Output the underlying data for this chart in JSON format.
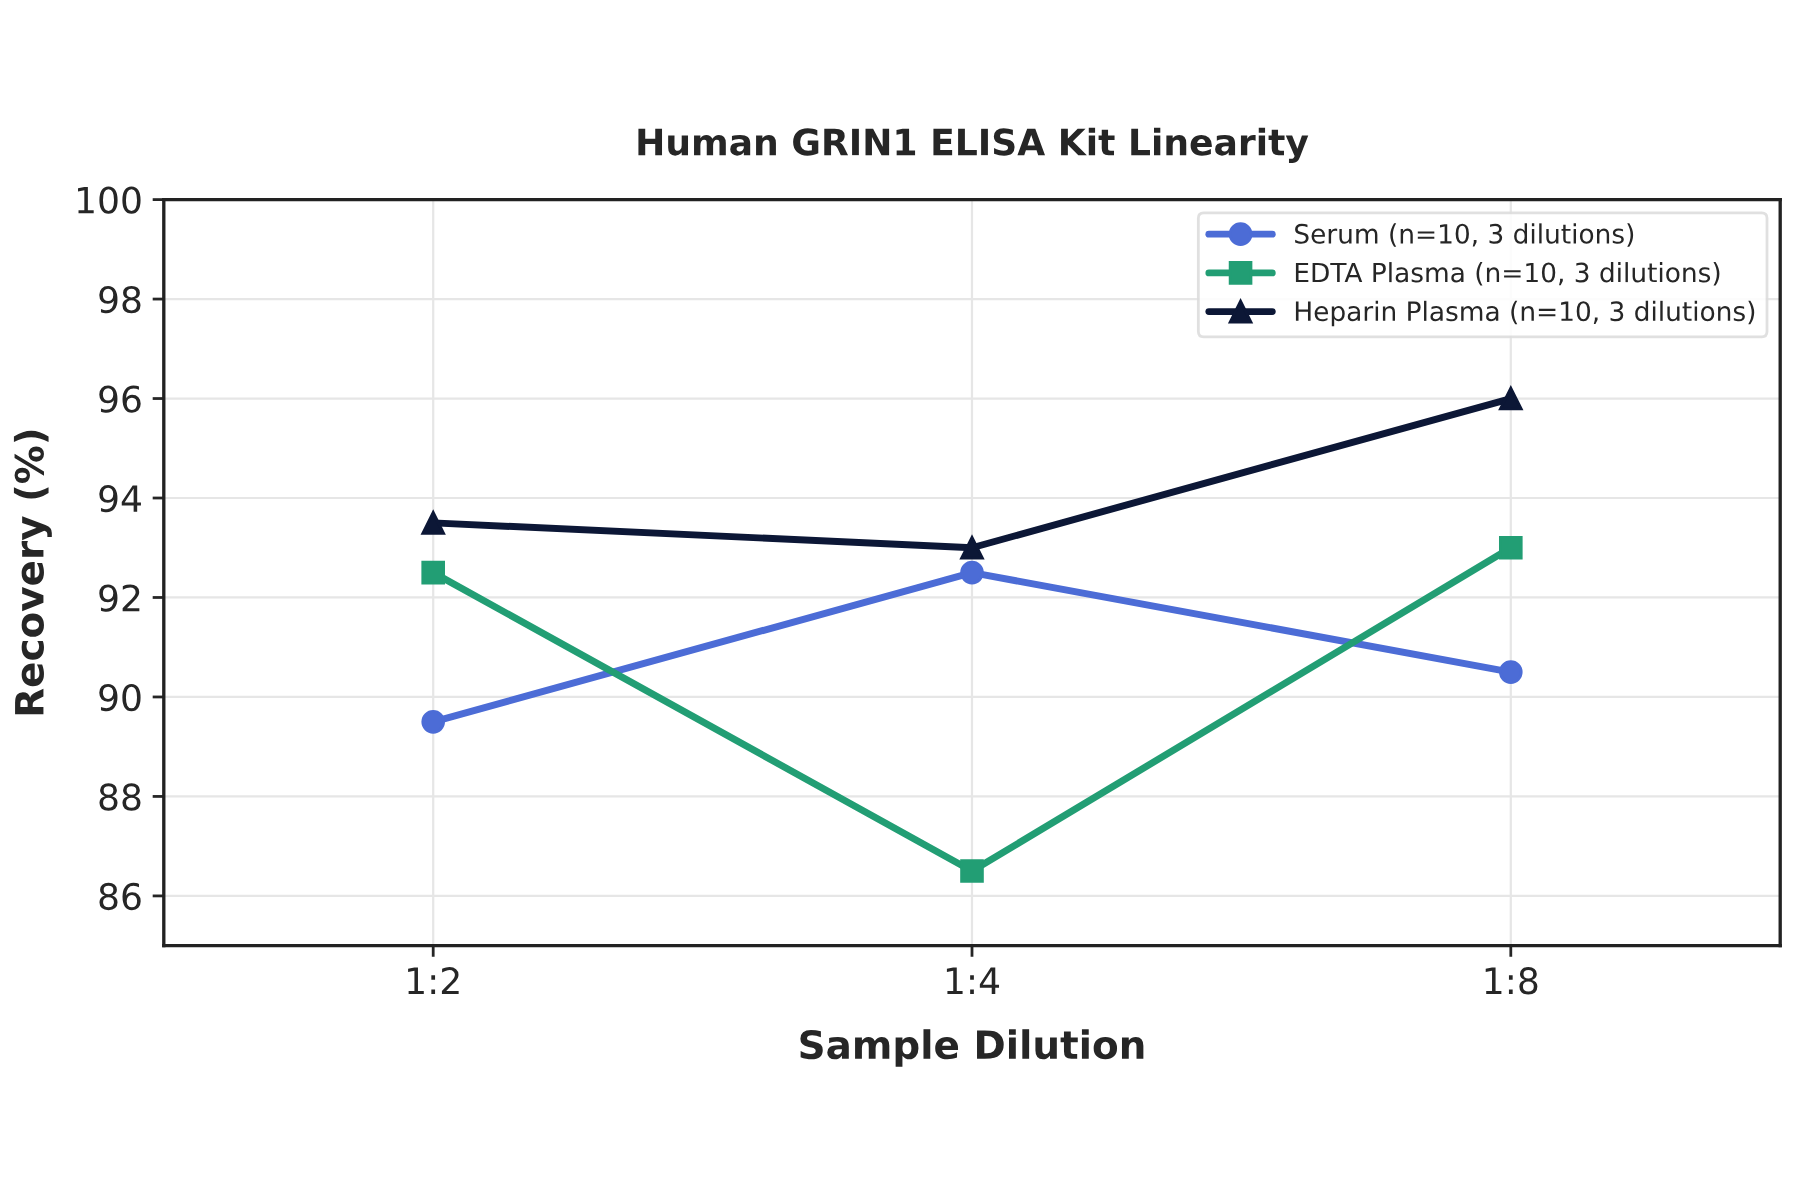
{
  "chart_data": {
    "type": "line",
    "title": "Human GRIN1 ELISA Kit Linearity",
    "xlabel": "Sample Dilution",
    "ylabel": "Recovery (%)",
    "categories": [
      "1:2",
      "1:4",
      "1:8"
    ],
    "series": [
      {
        "name": "Serum (n=10, 3 dilutions)",
        "color": "#4c6cd6",
        "marker": "circle",
        "values": [
          89.5,
          92.5,
          90.5
        ]
      },
      {
        "name": "EDTA Plasma (n=10, 3 dilutions)",
        "color": "#229e74",
        "marker": "square",
        "values": [
          92.5,
          86.5,
          93
        ]
      },
      {
        "name": "Heparin Plasma (n=10, 3 dilutions)",
        "color": "#0c1736",
        "marker": "triangle",
        "values": [
          93.5,
          93,
          96
        ]
      }
    ],
    "ylim": [
      85,
      100
    ],
    "yticks": [
      86,
      88,
      90,
      92,
      94,
      96,
      98,
      100
    ],
    "grid": true,
    "legend": "top right",
    "line_style": "solid"
  }
}
